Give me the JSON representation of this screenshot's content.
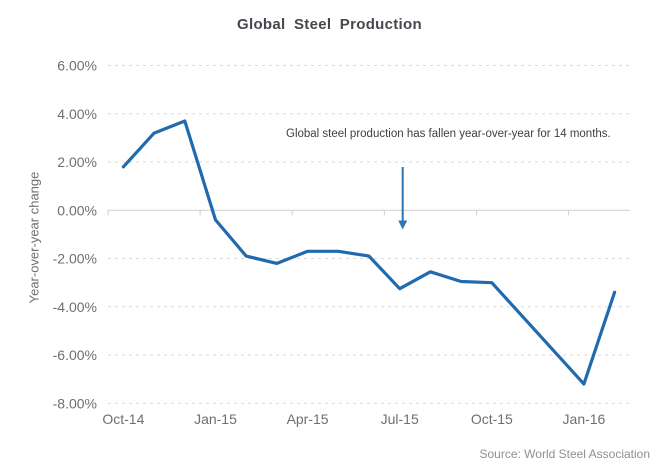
{
  "chart": {
    "source": "Source: World Steel Association",
    "colors": {
      "line": "#1f6bad",
      "arrow": "#2e75b5",
      "grid": "#d9d9d9",
      "zero_line": "#cfcfcf",
      "title_text": "#45484d",
      "axis_text": "#6f6f6f",
      "annotation_text": "#3f3f3f",
      "source_text": "#8f8f8f"
    }
  },
  "chart_data": {
    "type": "line",
    "title": "Global Steel Production",
    "ylabel": "Year-over-year change",
    "xlabel": "",
    "x": [
      "Oct-14",
      "Nov-14",
      "Dec-14",
      "Jan-15",
      "Feb-15",
      "Mar-15",
      "Apr-15",
      "May-15",
      "Jun-15",
      "Jul-15",
      "Aug-15",
      "Sep-15",
      "Oct-15",
      "Nov-15",
      "Dec-15",
      "Jan-16",
      "Feb-16"
    ],
    "values": [
      1.8,
      3.2,
      3.7,
      -0.4,
      -1.9,
      -2.2,
      -1.7,
      -1.7,
      -1.9,
      -3.25,
      -2.55,
      -2.95,
      -3.0,
      -4.4,
      -5.8,
      -7.2,
      -3.4
    ],
    "units": "percent year-over-year",
    "ylim": [
      -8,
      6
    ],
    "ytick_step": 2,
    "ytick_labels": [
      "6.00%",
      "4.00%",
      "2.00%",
      "0.00%",
      "-2.00%",
      "-4.00%",
      "-6.00%",
      "-8.00%"
    ],
    "x_tick_interval": 3,
    "x_tick_labels": [
      "Oct-14",
      "Jan-15",
      "Apr-15",
      "Jul-15",
      "Oct-15",
      "Jan-16"
    ],
    "grid": "dashed horizontal gridlines, solid zero line with category ticks",
    "legend": "none",
    "annotation": {
      "text": "Global steel production has fallen year-over-year for 14 months.",
      "arrow": "downward arrow pointing at Jul-15"
    }
  }
}
